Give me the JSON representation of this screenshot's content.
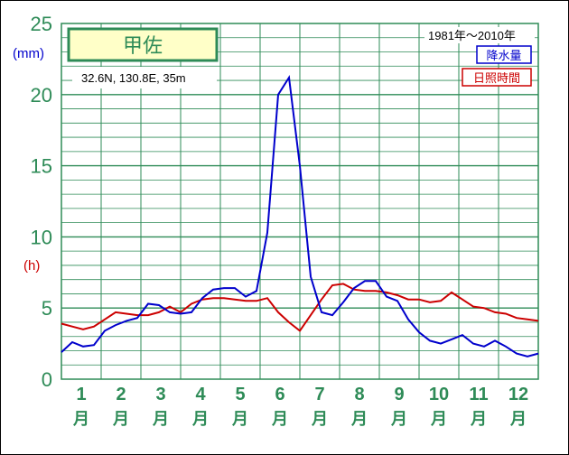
{
  "chart_data": {
    "type": "line",
    "station": "甲佐",
    "location": "32.6N,  130.8E,  35m",
    "period": "1981年～2010年",
    "ylabel_left": "(mm)",
    "ylabel_right": "(h)",
    "ylim": [
      0,
      25
    ],
    "yticks": [
      0,
      5,
      10,
      15,
      20,
      25
    ],
    "months": [
      "1",
      "2",
      "3",
      "4",
      "5",
      "6",
      "7",
      "8",
      "9",
      "10",
      "11",
      "12"
    ],
    "month_suffix": "月",
    "series": [
      {
        "name": "降水量",
        "color": "#0000cc",
        "values": [
          1.9,
          2.6,
          2.3,
          2.4,
          3.4,
          3.8,
          4.1,
          4.3,
          5.3,
          5.2,
          4.7,
          4.6,
          4.7,
          5.7,
          6.3,
          6.4,
          6.4,
          5.8,
          6.2,
          10.3,
          20.0,
          21.2,
          15.0,
          7.2,
          4.7,
          4.5,
          5.4,
          6.4,
          6.9,
          6.9,
          5.8,
          5.5,
          4.2,
          3.3,
          2.7,
          2.5,
          2.8,
          3.1,
          2.5,
          2.3,
          2.7,
          2.3,
          1.8,
          1.6,
          1.8
        ]
      },
      {
        "name": "日照時間",
        "color": "#cc0000",
        "values": [
          3.9,
          3.7,
          3.5,
          3.7,
          4.2,
          4.7,
          4.6,
          4.5,
          4.5,
          4.7,
          5.1,
          4.7,
          5.3,
          5.6,
          5.7,
          5.7,
          5.6,
          5.5,
          5.5,
          5.7,
          4.7,
          4.0,
          3.4,
          4.5,
          5.6,
          6.6,
          6.7,
          6.3,
          6.2,
          6.2,
          6.1,
          5.9,
          5.6,
          5.6,
          5.4,
          5.5,
          6.1,
          5.6,
          5.1,
          5.0,
          4.7,
          4.6,
          4.3,
          4.2,
          4.1
        ]
      }
    ]
  }
}
